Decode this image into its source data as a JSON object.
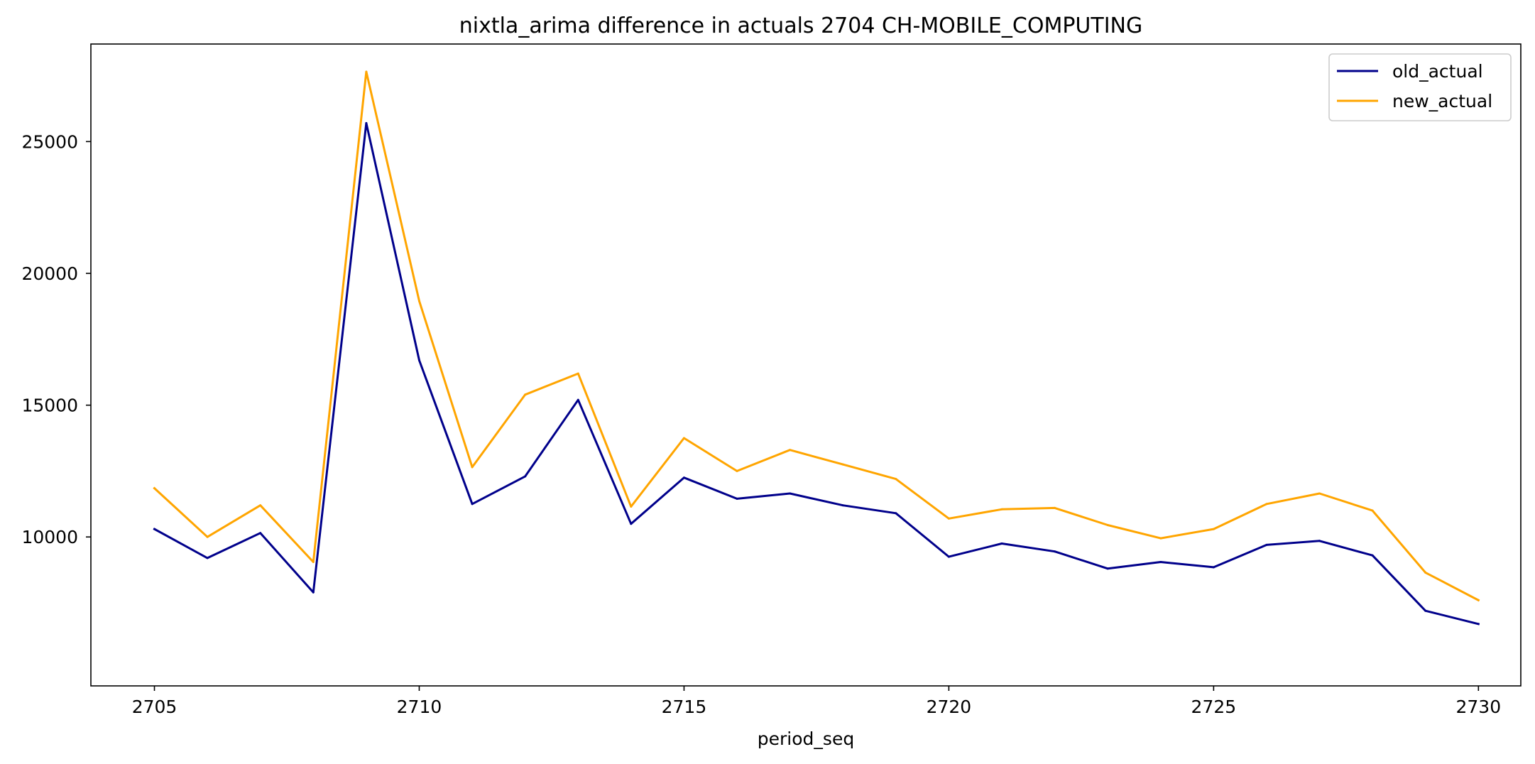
{
  "chart_data": {
    "type": "line",
    "title": "nixtla_arima difference in actuals 2704 CH-MOBILE_COMPUTING",
    "xlabel": "period_seq",
    "ylabel": "",
    "xlim": [
      2703.8,
      2730.8
    ],
    "ylim": [
      4350,
      28700
    ],
    "x_ticks": [
      2705,
      2710,
      2715,
      2720,
      2725,
      2730
    ],
    "y_ticks": [
      10000,
      15000,
      20000,
      25000
    ],
    "grid": false,
    "legend_position": "top-right",
    "x": [
      2705,
      2706,
      2707,
      2708,
      2709,
      2710,
      2711,
      2712,
      2713,
      2714,
      2715,
      2716,
      2717,
      2718,
      2719,
      2720,
      2721,
      2722,
      2723,
      2724,
      2725,
      2726,
      2727,
      2728,
      2729,
      2730
    ],
    "series": [
      {
        "name": "old_actual",
        "color": "#00008b",
        "values": [
          10300,
          9200,
          10150,
          7900,
          25700,
          16700,
          11250,
          12300,
          15200,
          10500,
          12250,
          11450,
          11650,
          11200,
          10900,
          9250,
          9750,
          9450,
          8800,
          9050,
          8850,
          9700,
          9850,
          9300,
          7200,
          6700
        ]
      },
      {
        "name": "new_actual",
        "color": "#ffa500",
        "values": [
          11850,
          10000,
          11200,
          9050,
          27650,
          18950,
          12650,
          15400,
          16200,
          11150,
          13750,
          12500,
          13300,
          12750,
          12200,
          10700,
          11050,
          11100,
          10450,
          9950,
          10300,
          11250,
          11650,
          11000,
          8650,
          7600
        ]
      }
    ]
  }
}
